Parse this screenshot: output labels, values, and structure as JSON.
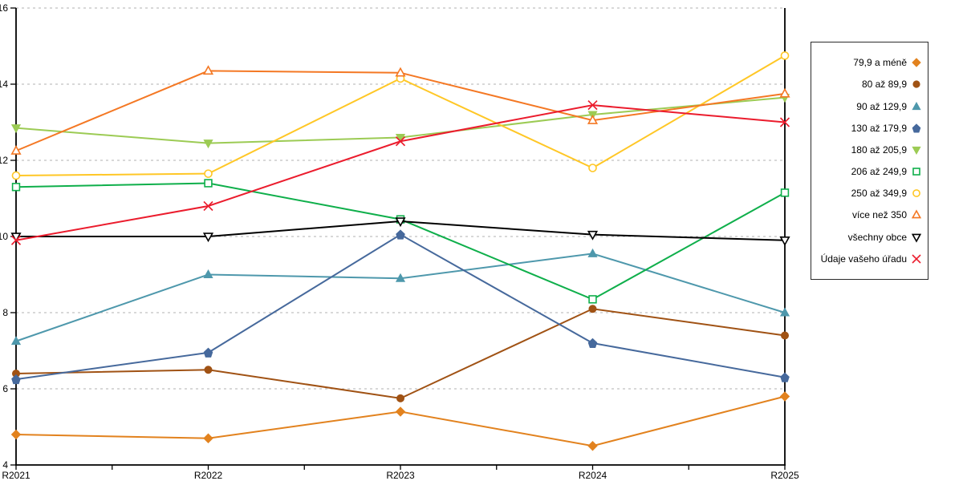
{
  "chart_data": {
    "type": "line",
    "title": "",
    "xlabel": "",
    "ylabel": "",
    "x": [
      "R2021",
      "R2022",
      "R2023",
      "R2024",
      "R2025"
    ],
    "ylim": [
      4,
      16
    ],
    "yticks": [
      4,
      6,
      8,
      10,
      12,
      14,
      16
    ],
    "grid": "horizontal-dashed",
    "legend_position": "right-outside-box",
    "series": [
      {
        "name": "79,9 a méně",
        "marker": "diamond-filled",
        "color": "#E2821E",
        "values": [
          4.8,
          4.7,
          5.4,
          4.5,
          5.8
        ]
      },
      {
        "name": "80 až 89,9",
        "marker": "circle-filled",
        "color": "#A05214",
        "values": [
          6.4,
          6.5,
          5.75,
          8.1,
          7.4
        ]
      },
      {
        "name": "90 až 129,9",
        "marker": "triangle-up-filled",
        "color": "#4E98AC",
        "values": [
          7.25,
          9.0,
          8.9,
          9.55,
          8.0
        ]
      },
      {
        "name": "130 až 179,9",
        "marker": "pentagon-filled",
        "color": "#46699C",
        "values": [
          6.25,
          6.95,
          10.05,
          7.2,
          6.3
        ]
      },
      {
        "name": "180 až 205,9",
        "marker": "triangle-down-filled",
        "color": "#9CCB54",
        "values": [
          12.85,
          12.45,
          12.6,
          13.2,
          13.65
        ]
      },
      {
        "name": "206 až 249,9",
        "marker": "square-open",
        "color": "#0FAF4B",
        "values": [
          11.3,
          11.4,
          10.45,
          8.35,
          11.15
        ]
      },
      {
        "name": "250 až 349,9",
        "marker": "circle-open",
        "color": "#FFC726",
        "values": [
          11.6,
          11.65,
          14.15,
          11.8,
          14.75
        ]
      },
      {
        "name": "více než 350",
        "marker": "triangle-up-open",
        "color": "#F47824",
        "values": [
          12.25,
          14.35,
          14.3,
          13.05,
          13.75
        ]
      },
      {
        "name": "všechny obce",
        "marker": "triangle-down-open",
        "color": "#000000",
        "values": [
          10.0,
          10.0,
          10.4,
          10.05,
          9.9
        ]
      },
      {
        "name": "Údaje vašeho úřadu",
        "marker": "x",
        "color": "#EB1C2D",
        "values": [
          9.9,
          10.8,
          12.5,
          13.45,
          13.0
        ]
      }
    ]
  },
  "colors": {
    "gridline": "#B0B0B0",
    "axis": "#000000",
    "background": "#FFFFFF"
  }
}
